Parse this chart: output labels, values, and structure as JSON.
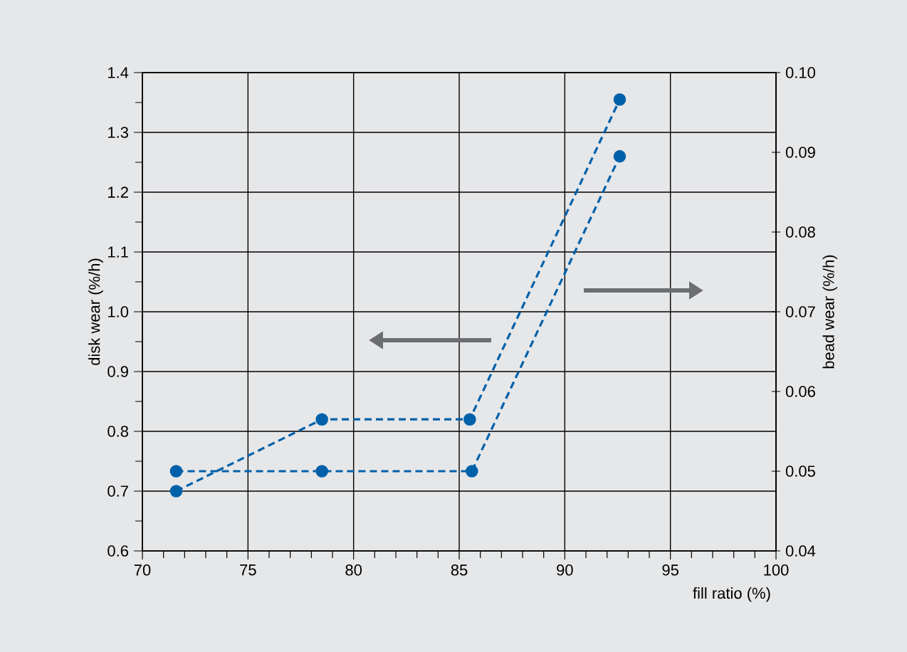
{
  "chart_data": {
    "type": "line",
    "xlabel": "fill ratio (%)",
    "ylabel": "disk wear (%/h)",
    "y2label": "bead wear (%/h)",
    "series": [
      {
        "color": "#0061aa",
        "x": [
          71.6,
          78.5,
          85.5,
          92.6
        ],
        "values": [
          0.7,
          0.82,
          0.82,
          1.355
        ]
      },
      {
        "color": "#0061aa",
        "x": [
          71.6,
          78.5,
          85.6,
          92.6
        ],
        "values": [
          0.05,
          0.05,
          0.05,
          0.0895
        ],
        "axis": "y2"
      }
    ],
    "xlim": [
      70,
      100
    ],
    "xticks": [
      70,
      75,
      80,
      85,
      90,
      95,
      100
    ],
    "ylim": [
      0.6,
      1.4
    ],
    "yticks": [
      0.6,
      0.7,
      0.8,
      0.9,
      {
        "value": 1.0,
        "label": "1.0"
      },
      1.1,
      1.2,
      1.3,
      1.4
    ],
    "y2lim": [
      0.04,
      0.1
    ],
    "y2ticks": [
      0.04,
      0.05,
      0.06,
      0.07,
      0.08,
      0.09,
      {
        "value": 0.1,
        "label": "0.10"
      }
    ],
    "grid": true,
    "marker": "circle",
    "line_style": "dashed"
  }
}
